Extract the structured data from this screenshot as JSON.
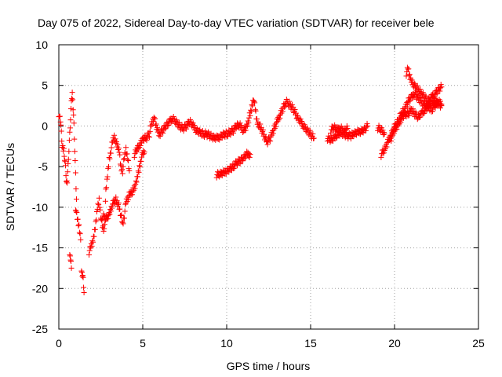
{
  "chart_data": {
    "type": "scatter",
    "title": "Day 075 of 2022, Sidereal Day-to-day VTEC variation (SDTVAR) for receiver bele",
    "xlabel": "GPS time / hours",
    "ylabel": "SDTVAR / TECUs",
    "xlim": [
      0,
      25
    ],
    "ylim": [
      -25,
      10
    ],
    "xticks": [
      "0",
      "5",
      "10",
      "15",
      "20",
      "25"
    ],
    "yticks": [
      "10",
      "5",
      "0",
      "-5",
      "-10",
      "-15",
      "-20",
      "-25"
    ],
    "grid": true,
    "marker": "+",
    "color": "#ff0000",
    "series": [
      {
        "name": "SDTVAR",
        "segments": [
          [
            [
              0.0,
              1.5
            ],
            [
              0.1,
              0.5
            ],
            [
              0.15,
              -1
            ],
            [
              0.2,
              -2.5
            ],
            [
              0.3,
              -3
            ],
            [
              0.35,
              -4
            ],
            [
              0.4,
              -5
            ],
            [
              0.45,
              -6.5
            ],
            [
              0.5,
              -7
            ],
            [
              0.55,
              -5
            ],
            [
              0.6,
              -3
            ],
            [
              0.65,
              -1
            ],
            [
              0.7,
              1
            ],
            [
              0.75,
              3
            ],
            [
              0.8,
              4.5
            ],
            [
              0.85,
              2
            ],
            [
              0.9,
              0
            ],
            [
              0.95,
              -3
            ],
            [
              1.0,
              -6
            ],
            [
              1.05,
              -9
            ]
          ],
          [
            [
              0.65,
              -15.5
            ],
            [
              0.7,
              -16.5
            ],
            [
              0.75,
              -17.5
            ]
          ],
          [
            [
              1.0,
              -10
            ],
            [
              1.1,
              -11.5
            ],
            [
              1.2,
              -12.5
            ],
            [
              1.3,
              -14
            ]
          ],
          [
            [
              1.35,
              -17.5
            ],
            [
              1.4,
              -18.5
            ],
            [
              1.45,
              -19
            ],
            [
              1.5,
              -20.5
            ]
          ],
          [
            [
              1.8,
              -15.5
            ],
            [
              1.9,
              -15
            ],
            [
              2.0,
              -14.5
            ],
            [
              2.1,
              -13.5
            ],
            [
              2.2,
              -12
            ],
            [
              2.3,
              -10
            ],
            [
              2.4,
              -9
            ],
            [
              2.5,
              -11
            ],
            [
              2.6,
              -12.5
            ],
            [
              2.7,
              -13
            ],
            [
              2.75,
              -11
            ],
            [
              2.8,
              -8
            ],
            [
              2.9,
              -6
            ],
            [
              3.0,
              -4
            ],
            [
              3.1,
              -3
            ],
            [
              3.2,
              -2
            ],
            [
              3.3,
              -1.5
            ],
            [
              3.4,
              -2
            ],
            [
              3.5,
              -2.5
            ],
            [
              3.6,
              -3
            ],
            [
              3.7,
              -5
            ],
            [
              3.8,
              -5.5
            ],
            [
              3.9,
              -4
            ],
            [
              4.0,
              -3
            ],
            [
              4.1,
              -4
            ],
            [
              4.2,
              -5.5
            ]
          ],
          [
            [
              2.6,
              -11
            ],
            [
              2.8,
              -11.5
            ],
            [
              3.0,
              -11
            ],
            [
              3.2,
              -9.5
            ],
            [
              3.4,
              -9
            ],
            [
              3.6,
              -10
            ],
            [
              3.8,
              -12
            ],
            [
              3.9,
              -11
            ],
            [
              4.0,
              -9.5
            ],
            [
              4.2,
              -8.5
            ],
            [
              4.4,
              -8
            ],
            [
              4.6,
              -7
            ],
            [
              4.7,
              -6
            ],
            [
              4.8,
              -5
            ],
            [
              4.9,
              -4
            ],
            [
              5.0,
              -3.5
            ],
            [
              5.1,
              -3.2
            ]
          ],
          [
            [
              4.5,
              -3.5
            ],
            [
              4.6,
              -3.2
            ],
            [
              4.7,
              -2.8
            ],
            [
              4.8,
              -2.5
            ],
            [
              4.9,
              -2
            ],
            [
              5.0,
              -1.5
            ],
            [
              5.2,
              -1.5
            ],
            [
              5.4,
              -1
            ],
            [
              5.5,
              0
            ],
            [
              5.6,
              0.5
            ],
            [
              5.7,
              1
            ],
            [
              5.8,
              0
            ],
            [
              5.9,
              -0.5
            ],
            [
              6.0,
              -1
            ],
            [
              6.2,
              -0.5
            ],
            [
              6.4,
              0
            ],
            [
              6.6,
              0.5
            ],
            [
              6.8,
              1
            ],
            [
              7.0,
              0.5
            ],
            [
              7.2,
              0
            ],
            [
              7.4,
              -0.3
            ],
            [
              7.6,
              0
            ],
            [
              7.8,
              0.5
            ],
            [
              8.0,
              0
            ],
            [
              8.2,
              -0.5
            ],
            [
              8.4,
              -0.7
            ],
            [
              8.6,
              -1
            ],
            [
              8.8,
              -1
            ],
            [
              9.0,
              -1.2
            ],
            [
              9.2,
              -1.5
            ],
            [
              9.4,
              -1.5
            ],
            [
              9.6,
              -1.3
            ],
            [
              9.8,
              -1
            ],
            [
              10.0,
              -1
            ],
            [
              10.2,
              -0.8
            ],
            [
              10.4,
              -0.5
            ],
            [
              10.6,
              0
            ],
            [
              10.8,
              0
            ],
            [
              11.0,
              -0.5
            ],
            [
              11.2,
              0
            ],
            [
              11.4,
              1.5
            ],
            [
              11.5,
              2.5
            ],
            [
              11.6,
              3.5
            ],
            [
              11.7,
              2
            ],
            [
              11.8,
              0.5
            ],
            [
              11.9,
              0
            ],
            [
              12.0,
              0
            ],
            [
              12.2,
              -1
            ],
            [
              12.4,
              -2
            ],
            [
              12.6,
              -1.5
            ],
            [
              12.8,
              -0.5
            ],
            [
              13.0,
              0.5
            ],
            [
              13.2,
              1.5
            ],
            [
              13.4,
              2.5
            ],
            [
              13.6,
              3
            ],
            [
              13.8,
              2.5
            ],
            [
              14.0,
              2
            ],
            [
              14.2,
              1
            ],
            [
              14.4,
              0.5
            ],
            [
              14.6,
              0
            ],
            [
              14.8,
              -0.5
            ],
            [
              15.0,
              -1
            ],
            [
              15.2,
              -1.5
            ]
          ],
          [
            [
              9.4,
              -6
            ],
            [
              9.6,
              -6
            ],
            [
              9.8,
              -5.8
            ],
            [
              10.0,
              -5.5
            ],
            [
              10.2,
              -5.2
            ],
            [
              10.4,
              -5
            ],
            [
              10.6,
              -4.5
            ],
            [
              10.8,
              -4.3
            ],
            [
              11.0,
              -4
            ],
            [
              11.2,
              -3.5
            ],
            [
              11.4,
              -3.5
            ]
          ],
          [
            [
              16.0,
              -1.5
            ],
            [
              16.2,
              -1.8
            ],
            [
              16.4,
              -1.5
            ],
            [
              16.6,
              -1
            ],
            [
              16.8,
              -0.8
            ],
            [
              17.0,
              -1
            ],
            [
              17.2,
              -1.2
            ],
            [
              17.4,
              -1.2
            ],
            [
              17.6,
              -1
            ],
            [
              17.8,
              -0.8
            ],
            [
              18.0,
              -0.6
            ],
            [
              18.2,
              -0.4
            ],
            [
              18.4,
              0
            ]
          ],
          [
            [
              16.2,
              -0.5
            ],
            [
              16.4,
              -0.2
            ],
            [
              16.6,
              -0.5
            ],
            [
              16.8,
              -0.2
            ],
            [
              17.0,
              -0.6
            ],
            [
              17.2,
              -0.3
            ]
          ],
          [
            [
              19.2,
              -3.5
            ],
            [
              19.4,
              -3
            ],
            [
              19.6,
              -2
            ],
            [
              19.8,
              -1
            ],
            [
              20.0,
              0
            ],
            [
              20.2,
              0.5
            ],
            [
              20.4,
              1.5
            ],
            [
              20.6,
              2
            ],
            [
              20.8,
              3
            ],
            [
              21.0,
              3.5
            ],
            [
              21.2,
              4
            ],
            [
              21.4,
              3.5
            ],
            [
              21.6,
              3
            ],
            [
              21.8,
              2.5
            ],
            [
              22.0,
              2.5
            ],
            [
              22.2,
              2.8
            ],
            [
              22.4,
              3
            ],
            [
              22.6,
              2.8
            ],
            [
              22.8,
              2.5
            ]
          ],
          [
            [
              20.7,
              6.5
            ],
            [
              20.8,
              7
            ],
            [
              20.9,
              6
            ],
            [
              21.0,
              5.5
            ],
            [
              21.2,
              5
            ],
            [
              21.4,
              4.5
            ],
            [
              21.6,
              4
            ],
            [
              21.8,
              3.5
            ],
            [
              22.0,
              3
            ],
            [
              22.2,
              3.5
            ],
            [
              22.4,
              4
            ],
            [
              22.6,
              4.5
            ],
            [
              22.8,
              4.8
            ]
          ],
          [
            [
              19.8,
              -1.5
            ],
            [
              20.0,
              -0.5
            ],
            [
              20.2,
              0
            ],
            [
              20.4,
              1
            ],
            [
              20.6,
              1.5
            ],
            [
              20.8,
              1.5
            ],
            [
              21.0,
              2
            ],
            [
              21.2,
              1.5
            ],
            [
              21.4,
              1
            ],
            [
              21.6,
              1.5
            ],
            [
              21.8,
              2
            ],
            [
              22.0,
              2.5
            ],
            [
              22.2,
              2
            ],
            [
              22.4,
              2.5
            ],
            [
              22.6,
              3
            ],
            [
              22.8,
              2.7
            ]
          ],
          [
            [
              19.0,
              -0.2
            ],
            [
              19.2,
              -0.5
            ],
            [
              19.4,
              -1
            ]
          ]
        ]
      }
    ]
  }
}
